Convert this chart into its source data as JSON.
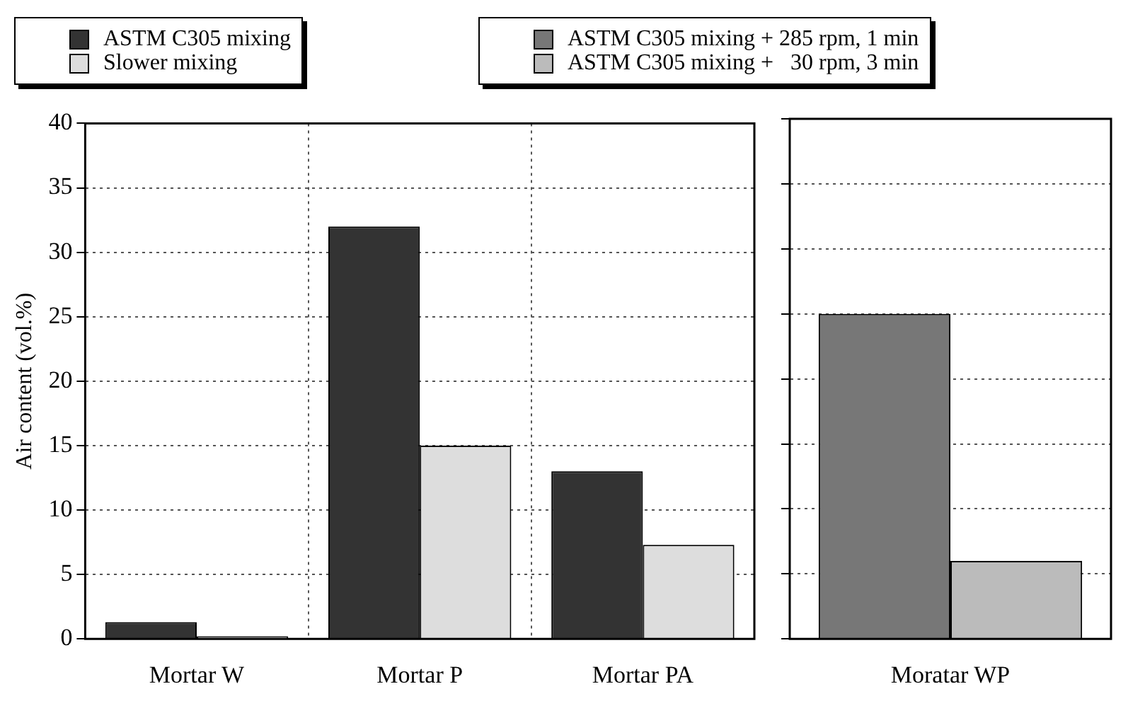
{
  "chart_data": [
    {
      "type": "bar",
      "ylabel": "Air content (vol.%)",
      "categories": [
        "Mortar W",
        "Mortar P",
        "Mortar PA"
      ],
      "series": [
        {
          "name": "ASTM C305 mixing",
          "color": "#333333",
          "values": [
            1.3,
            32,
            13
          ]
        },
        {
          "name": "Slower mixing",
          "color": "#dddddd",
          "values": [
            0.2,
            15,
            7.3
          ]
        }
      ],
      "ylim": [
        0,
        40
      ],
      "yticks": [
        0,
        5,
        10,
        15,
        20,
        25,
        30,
        35,
        40
      ],
      "grid": true,
      "legend": "top"
    },
    {
      "type": "bar",
      "categories": [
        "Moratar WP"
      ],
      "series": [
        {
          "name": "ASTM C305 mixing + 285 rpm, 1 min",
          "color": "#777777",
          "values": [
            25
          ]
        },
        {
          "name": "ASTM C305 mixing +   30 rpm, 3 min",
          "color": "#bbbbbb",
          "values": [
            6
          ]
        }
      ],
      "ylim": [
        0,
        40
      ],
      "yticks": [
        0,
        5,
        10,
        15,
        20,
        25,
        30,
        35,
        40
      ],
      "grid": "y",
      "legend": "top",
      "tick_labels": "x"
    }
  ]
}
